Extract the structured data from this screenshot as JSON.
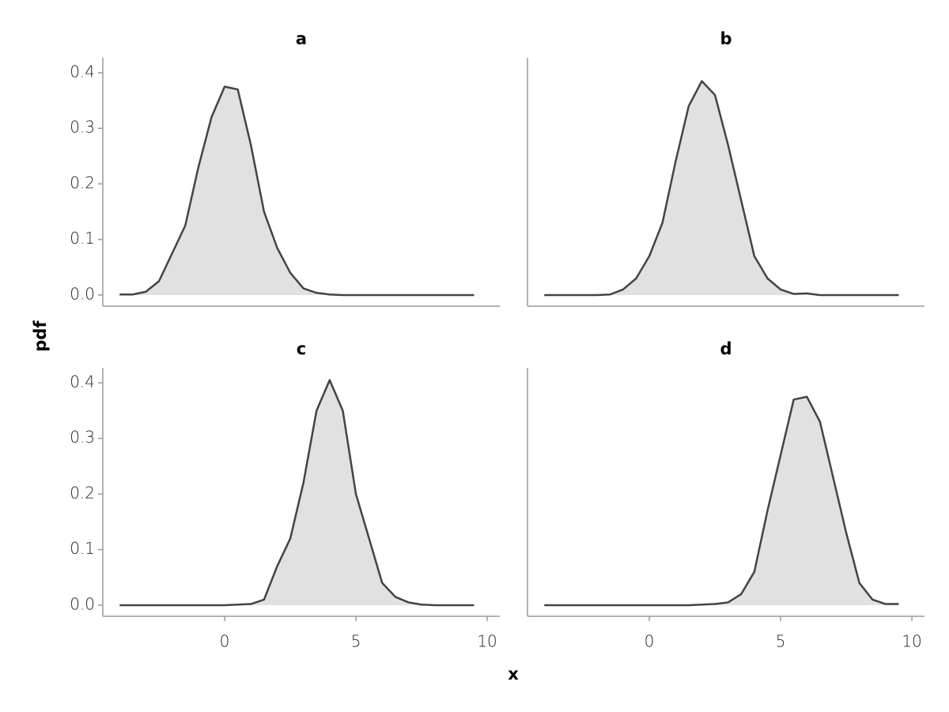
{
  "chart_data": [
    {
      "type": "area",
      "title": "a",
      "x": [
        -4,
        -3.5,
        -3,
        -2.5,
        -2,
        -1.5,
        -1,
        -0.5,
        0,
        0.5,
        1,
        1.5,
        2,
        2.5,
        3,
        3.5,
        4,
        4.5,
        5,
        5.5,
        6,
        6.5,
        7,
        7.5,
        8,
        8.5,
        9,
        9.5
      ],
      "values": [
        0.001,
        0.001,
        0.006,
        0.025,
        0.075,
        0.125,
        0.23,
        0.32,
        0.375,
        0.37,
        0.27,
        0.15,
        0.085,
        0.04,
        0.012,
        0.004,
        0.001,
        0,
        0,
        0,
        0,
        0,
        0,
        0,
        0,
        0,
        0,
        0
      ]
    },
    {
      "type": "area",
      "title": "b",
      "x": [
        -4,
        -3.5,
        -3,
        -2.5,
        -2,
        -1.5,
        -1,
        -0.5,
        0,
        0.5,
        1,
        1.5,
        2,
        2.5,
        3,
        3.5,
        4,
        4.5,
        5,
        5.5,
        6,
        6.5,
        7,
        7.5,
        8,
        8.5,
        9,
        9.5
      ],
      "values": [
        0,
        0,
        0,
        0,
        0,
        0.001,
        0.01,
        0.03,
        0.07,
        0.13,
        0.24,
        0.34,
        0.385,
        0.36,
        0.27,
        0.17,
        0.07,
        0.03,
        0.01,
        0.002,
        0.003,
        0,
        0,
        0,
        0,
        0,
        0,
        0
      ]
    },
    {
      "type": "area",
      "title": "c",
      "x": [
        -4,
        -3.5,
        -3,
        -2.5,
        -2,
        -1.5,
        -1,
        -0.5,
        0,
        0.5,
        1,
        1.5,
        2,
        2.5,
        3,
        3.5,
        4,
        4.5,
        5,
        5.5,
        6,
        6.5,
        7,
        7.5,
        8,
        8.5,
        9,
        9.5
      ],
      "values": [
        0,
        0,
        0,
        0,
        0,
        0,
        0,
        0,
        0,
        0.001,
        0.002,
        0.01,
        0.07,
        0.12,
        0.22,
        0.35,
        0.405,
        0.35,
        0.2,
        0.12,
        0.04,
        0.015,
        0.005,
        0.001,
        0,
        0,
        0,
        0
      ]
    },
    {
      "type": "area",
      "title": "d",
      "x": [
        -4,
        -3.5,
        -3,
        -2.5,
        -2,
        -1.5,
        -1,
        -0.5,
        0,
        0.5,
        1,
        1.5,
        2,
        2.5,
        3,
        3.5,
        4,
        4.5,
        5,
        5.5,
        6,
        6.5,
        7,
        7.5,
        8,
        8.5,
        9,
        9.5
      ],
      "values": [
        0,
        0,
        0,
        0,
        0,
        0,
        0,
        0,
        0,
        0,
        0,
        0,
        0.001,
        0.002,
        0.005,
        0.02,
        0.06,
        0.17,
        0.27,
        0.37,
        0.375,
        0.33,
        0.23,
        0.13,
        0.04,
        0.01,
        0.002,
        0.002
      ]
    }
  ],
  "shared_axes": {
    "xlabel": "x",
    "ylabel": "pdf",
    "xlim": [
      -4.64,
      10.48
    ],
    "ylim": [
      -0.02,
      0.427
    ],
    "xticks": [
      0,
      5,
      10
    ],
    "yticks": [
      {
        "value": 0,
        "label": "0.0"
      },
      {
        "value": 0.1,
        "label": "0.1"
      },
      {
        "value": 0.2,
        "label": "0.2"
      },
      {
        "value": 0.3,
        "label": "0.3"
      },
      {
        "value": 0.4,
        "label": "0.4"
      }
    ],
    "fill": "#e1e1e1",
    "line_color": "#444444"
  }
}
